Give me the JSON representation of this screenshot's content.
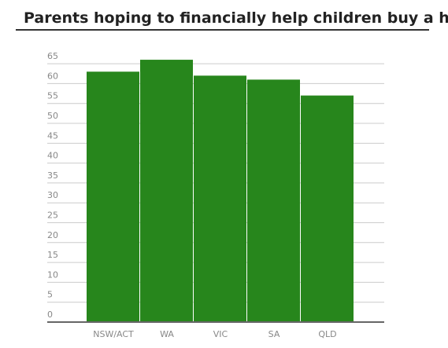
{
  "chart_data": {
    "type": "bar",
    "title": "Parents hoping to financially help children buy a home",
    "categories": [
      "NSW/ACT",
      "WA",
      "VIC",
      "SA",
      "QLD"
    ],
    "values": [
      63,
      66,
      62,
      61,
      57
    ],
    "color": "#27861c",
    "ylim": [
      0,
      67
    ],
    "yticks": [
      0,
      5,
      10,
      15,
      20,
      25,
      30,
      35,
      40,
      45,
      50,
      55,
      60,
      65
    ],
    "grid": true
  }
}
